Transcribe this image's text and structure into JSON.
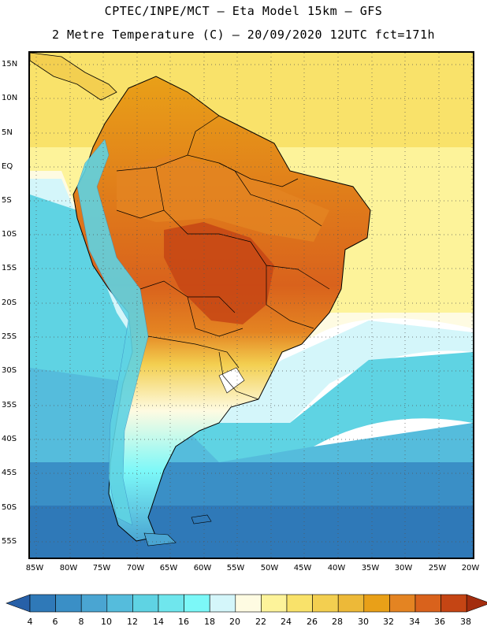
{
  "title_line1": "CPTEC/INPE/MCT –  Eta Model 15km – GFS",
  "title_line2": "2 Metre Temperature (C) – 20/09/2020 12UTC fct=171h",
  "lat_labels": [
    "15N",
    "10N",
    "5N",
    "EQ",
    "5S",
    "10S",
    "15S",
    "20S",
    "25S",
    "30S",
    "35S",
    "40S",
    "45S",
    "50S",
    "55S"
  ],
  "lon_labels": [
    "85W",
    "80W",
    "75W",
    "70W",
    "65W",
    "60W",
    "55W",
    "50W",
    "45W",
    "40W",
    "35W",
    "30W",
    "25W",
    "20W"
  ],
  "colorbar": {
    "labels": [
      "4",
      "6",
      "8",
      "10",
      "12",
      "14",
      "16",
      "18",
      "20",
      "22",
      "24",
      "26",
      "28",
      "30",
      "32",
      "34",
      "36",
      "38"
    ],
    "colors": [
      "#2760a8",
      "#2f79b8",
      "#3a8fc6",
      "#4aa5d2",
      "#55bcdc",
      "#5fd3e3",
      "#6fe6ed",
      "#7cf8f8",
      "#d4f6fa",
      "#fefbe2",
      "#fdf39a",
      "#f9e26a",
      "#f3cf50",
      "#edb938",
      "#e9a018",
      "#e48422",
      "#d9621c",
      "#c54514",
      "#a32d0e"
    ]
  }
}
